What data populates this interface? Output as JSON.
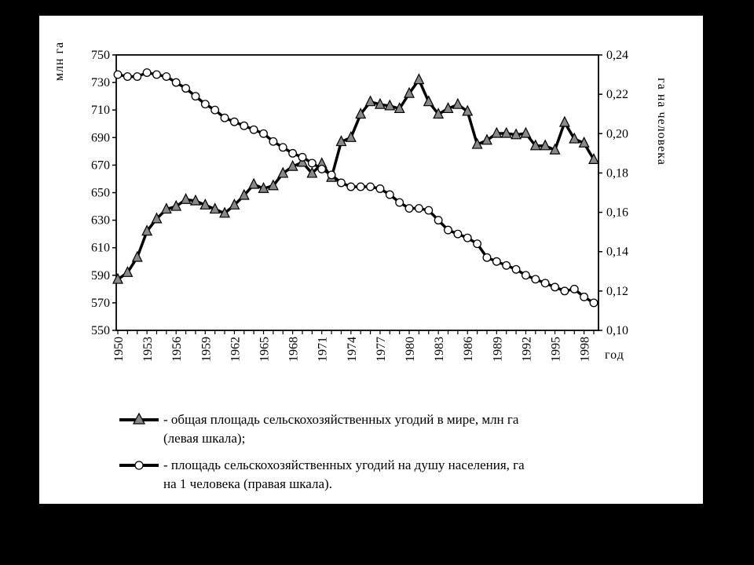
{
  "chart_data": {
    "type": "line",
    "ylabel_left": "млн га",
    "ylabel_right": "га на человека",
    "xlabel": "год",
    "ylim_left": [
      550,
      750
    ],
    "ylim_right": [
      0.1,
      0.24
    ],
    "xlim": [
      1950,
      1999
    ],
    "yticks_left": [
      "750",
      "730",
      "710",
      "690",
      "670",
      "650",
      "630",
      "610",
      "590",
      "570",
      "550"
    ],
    "yticks_right": [
      "0,24",
      "0,22",
      "0,20",
      "0,18",
      "0,16",
      "0,14",
      "0,12",
      "0,10"
    ],
    "xticks": [
      "1950",
      "1953",
      "1956",
      "1959",
      "1962",
      "1965",
      "1968",
      "1971",
      "1974",
      "1977",
      "1980",
      "1983",
      "1986",
      "1989",
      "1992",
      "1995",
      "1998"
    ],
    "x": [
      1950,
      1951,
      1952,
      1953,
      1954,
      1955,
      1956,
      1957,
      1958,
      1959,
      1960,
      1961,
      1962,
      1963,
      1964,
      1965,
      1966,
      1967,
      1968,
      1969,
      1970,
      1971,
      1972,
      1973,
      1974,
      1975,
      1976,
      1977,
      1978,
      1979,
      1980,
      1981,
      1982,
      1983,
      1984,
      1985,
      1986,
      1987,
      1988,
      1989,
      1990,
      1991,
      1992,
      1993,
      1994,
      1995,
      1996,
      1997,
      1998,
      1999
    ],
    "series": [
      {
        "name": "общая площадь сельскохозяйственных угодий в мире, млн га",
        "axis": "left",
        "marker": "triangle",
        "values": [
          587,
          592,
          603,
          622,
          631,
          638,
          640,
          645,
          644,
          641,
          638,
          635,
          641,
          648,
          656,
          653,
          655,
          664,
          669,
          672,
          664,
          671,
          661,
          687,
          690,
          707,
          716,
          714,
          713,
          711,
          722,
          732,
          716,
          707,
          711,
          714,
          709,
          685,
          688,
          693,
          693,
          692,
          693,
          684,
          684,
          681,
          701,
          689,
          686,
          674
        ]
      },
      {
        "name": "площадь сельскохозяйственных угодий на душу населения, га на 1 человека",
        "axis": "right",
        "marker": "circle",
        "values": [
          0.23,
          0.229,
          0.229,
          0.231,
          0.23,
          0.229,
          0.226,
          0.223,
          0.219,
          0.215,
          0.212,
          0.208,
          0.206,
          0.204,
          0.202,
          0.2,
          0.196,
          0.193,
          0.19,
          0.188,
          0.185,
          0.182,
          0.179,
          0.175,
          0.173,
          0.173,
          0.173,
          0.172,
          0.169,
          0.165,
          0.162,
          0.162,
          0.161,
          0.156,
          0.151,
          0.149,
          0.147,
          0.144,
          0.137,
          0.135,
          0.133,
          0.131,
          0.128,
          0.126,
          0.124,
          0.122,
          0.12,
          0.121,
          0.117,
          0.114
        ]
      }
    ]
  },
  "legend": [
    {
      "line1": "- общая площадь сельскохозяйственных угодий в мире, млн га",
      "line2": "(левая шкала);"
    },
    {
      "line1": "- площадь сельскохозяйственных угодий на душу населения, га",
      "line2": "на 1 человека (правая шкала)."
    }
  ]
}
